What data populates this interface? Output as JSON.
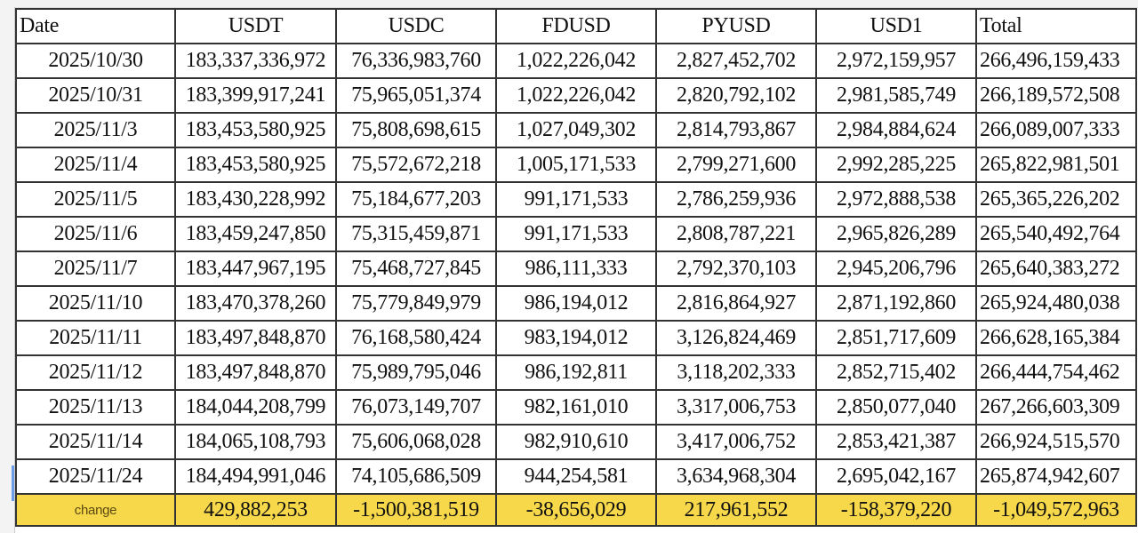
{
  "headers": [
    "Date",
    "USDT",
    "USDC",
    "FDUSD",
    "PYUSD",
    "USD1",
    "Total"
  ],
  "rows": [
    [
      "2025/10/30",
      "183,337,336,972",
      "76,336,983,760",
      "1,022,226,042",
      "2,827,452,702",
      "2,972,159,957",
      "266,496,159,433"
    ],
    [
      "2025/10/31",
      "183,399,917,241",
      "75,965,051,374",
      "1,022,226,042",
      "2,820,792,102",
      "2,981,585,749",
      "266,189,572,508"
    ],
    [
      "2025/11/3",
      "183,453,580,925",
      "75,808,698,615",
      "1,027,049,302",
      "2,814,793,867",
      "2,984,884,624",
      "266,089,007,333"
    ],
    [
      "2025/11/4",
      "183,453,580,925",
      "75,572,672,218",
      "1,005,171,533",
      "2,799,271,600",
      "2,992,285,225",
      "265,822,981,501"
    ],
    [
      "2025/11/5",
      "183,430,228,992",
      "75,184,677,203",
      "991,171,533",
      "2,786,259,936",
      "2,972,888,538",
      "265,365,226,202"
    ],
    [
      "2025/11/6",
      "183,459,247,850",
      "75,315,459,871",
      "991,171,533",
      "2,808,787,221",
      "2,965,826,289",
      "265,540,492,764"
    ],
    [
      "2025/11/7",
      "183,447,967,195",
      "75,468,727,845",
      "986,111,333",
      "2,792,370,103",
      "2,945,206,796",
      "265,640,383,272"
    ],
    [
      "2025/11/10",
      "183,470,378,260",
      "75,779,849,979",
      "986,194,012",
      "2,816,864,927",
      "2,871,192,860",
      "265,924,480,038"
    ],
    [
      "2025/11/11",
      "183,497,848,870",
      "76,168,580,424",
      "983,194,012",
      "3,126,824,469",
      "2,851,717,609",
      "266,628,165,384"
    ],
    [
      "2025/11/12",
      "183,497,848,870",
      "75,989,795,046",
      "986,192,811",
      "3,118,202,333",
      "2,852,715,402",
      "266,444,754,462"
    ],
    [
      "2025/11/13",
      "184,044,208,799",
      "76,073,149,707",
      "982,161,010",
      "3,317,006,753",
      "2,850,077,040",
      "267,266,603,309"
    ],
    [
      "2025/11/14",
      "184,065,108,793",
      "75,606,068,028",
      "982,910,610",
      "3,417,006,752",
      "2,853,421,387",
      "266,924,515,570"
    ],
    [
      "2025/11/24",
      "184,494,991,046",
      "74,105,686,509",
      "944,254,581",
      "3,634,968,304",
      "2,695,042,167",
      "265,874,942,607"
    ]
  ],
  "change": [
    "change",
    "429,882,253",
    "-1,500,381,519",
    "-38,656,029",
    "217,961,552",
    "-158,379,220",
    "-1,049,572,963"
  ],
  "colors": {
    "change_row_bg": "#f7d84a",
    "grid": "#333333"
  }
}
